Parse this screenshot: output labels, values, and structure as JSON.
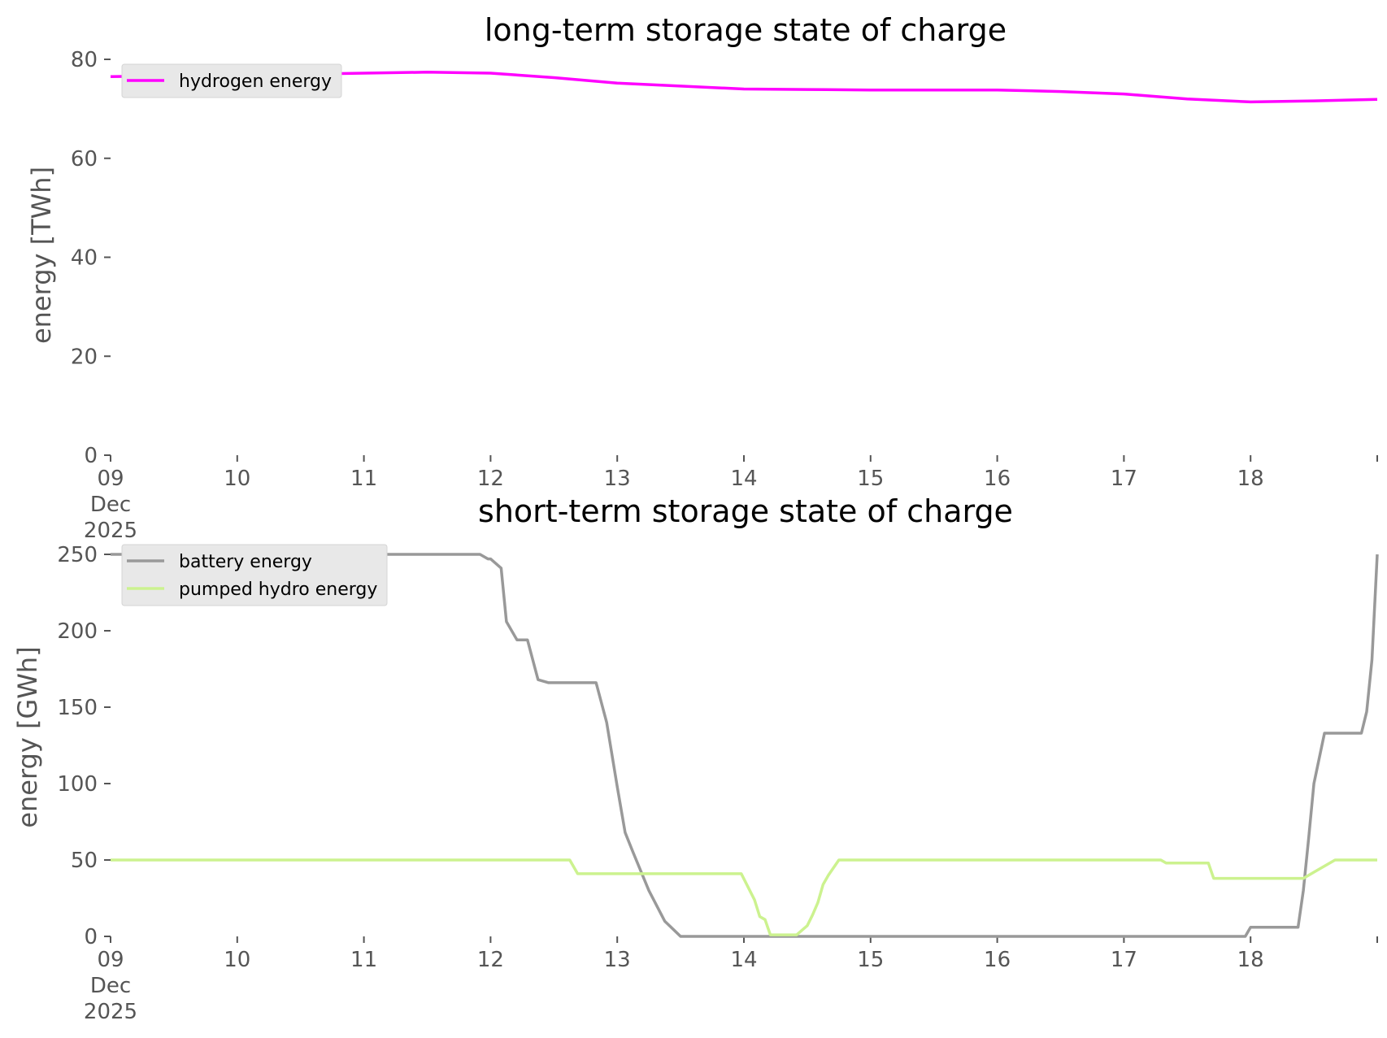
{
  "chart_data": [
    {
      "type": "line",
      "title": "long-term storage state of charge",
      "xlabel": "",
      "ylabel": "energy [TWh]",
      "ylim": [
        0,
        80
      ],
      "xlim": [
        "2025-12-09",
        "2025-12-19"
      ],
      "yticks": [
        "0",
        "20",
        "40",
        "60",
        "80"
      ],
      "xticks": [
        {
          "day": 9,
          "lines": [
            "09",
            "Dec",
            "2025"
          ]
        },
        {
          "day": 10,
          "lines": [
            "10"
          ]
        },
        {
          "day": 11,
          "lines": [
            "11"
          ]
        },
        {
          "day": 12,
          "lines": [
            "12"
          ]
        },
        {
          "day": 13,
          "lines": [
            "13"
          ]
        },
        {
          "day": 14,
          "lines": [
            "14"
          ]
        },
        {
          "day": 15,
          "lines": [
            "15"
          ]
        },
        {
          "day": 16,
          "lines": [
            "16"
          ]
        },
        {
          "day": 17,
          "lines": [
            "17"
          ]
        },
        {
          "day": 18,
          "lines": [
            "18"
          ]
        }
      ],
      "legend_position": "top-left",
      "grid": false,
      "series": [
        {
          "name": "hydrogen energy",
          "color": "#ff00ff",
          "x": [
            "2025-12-09 00:00",
            "2025-12-09 12:00",
            "2025-12-10 00:00",
            "2025-12-10 12:00",
            "2025-12-11 00:00",
            "2025-12-11 12:00",
            "2025-12-12 00:00",
            "2025-12-12 12:00",
            "2025-12-13 00:00",
            "2025-12-13 12:00",
            "2025-12-14 00:00",
            "2025-12-14 12:00",
            "2025-12-15 00:00",
            "2025-12-15 12:00",
            "2025-12-16 00:00",
            "2025-12-16 12:00",
            "2025-12-17 00:00",
            "2025-12-17 12:00",
            "2025-12-18 00:00",
            "2025-12-18 12:00",
            "2025-12-19 00:00"
          ],
          "y": [
            76.5,
            76.7,
            76.8,
            77.0,
            77.2,
            77.4,
            77.2,
            76.3,
            75.2,
            74.6,
            74.0,
            73.9,
            73.8,
            73.8,
            73.8,
            73.5,
            73.0,
            72.0,
            71.4,
            71.6,
            71.9
          ]
        }
      ]
    },
    {
      "type": "line",
      "title": "short-term storage state of charge",
      "xlabel": "",
      "ylabel": "energy [GWh]",
      "ylim": [
        0,
        250
      ],
      "xlim": [
        "2025-12-09",
        "2025-12-19"
      ],
      "yticks": [
        "0",
        "50",
        "100",
        "150",
        "200",
        "250"
      ],
      "xticks": [
        {
          "day": 9,
          "lines": [
            "09",
            "Dec",
            "2025"
          ]
        },
        {
          "day": 10,
          "lines": [
            "10"
          ]
        },
        {
          "day": 11,
          "lines": [
            "11"
          ]
        },
        {
          "day": 12,
          "lines": [
            "12"
          ]
        },
        {
          "day": 13,
          "lines": [
            "13"
          ]
        },
        {
          "day": 14,
          "lines": [
            "14"
          ]
        },
        {
          "day": 15,
          "lines": [
            "15"
          ]
        },
        {
          "day": 16,
          "lines": [
            "16"
          ]
        },
        {
          "day": 17,
          "lines": [
            "17"
          ]
        },
        {
          "day": 18,
          "lines": [
            "18"
          ]
        }
      ],
      "legend_position": "top-left",
      "grid": false,
      "series": [
        {
          "name": "battery energy",
          "color": "#999999",
          "x": [
            "2025-12-09 00:00",
            "2025-12-11 22:00",
            "2025-12-11 23:30",
            "2025-12-12 00:00",
            "2025-12-12 02:00",
            "2025-12-12 03:00",
            "2025-12-12 05:00",
            "2025-12-12 07:00",
            "2025-12-12 09:00",
            "2025-12-12 11:00",
            "2025-12-12 20:00",
            "2025-12-12 22:00",
            "2025-12-13 00:00",
            "2025-12-13 01:30",
            "2025-12-13 03:00",
            "2025-12-13 06:00",
            "2025-12-13 09:00",
            "2025-12-13 12:00",
            "2025-12-13 14:00",
            "2025-12-14 00:00",
            "2025-12-14 07:00",
            "2025-12-14 08:00",
            "2025-12-14 09:00",
            "2025-12-14 10:00",
            "2025-12-14 11:00",
            "2025-12-14 12:00",
            "2025-12-14 13:00",
            "2025-12-14 14:00",
            "2025-12-14 15:00",
            "2025-12-14 16:00",
            "2025-12-14 17:00",
            "2025-12-14 19:00",
            "2025-12-14 20:00",
            "2025-12-14 21:00",
            "2025-12-14 22:00",
            "2025-12-14 23:00",
            "2025-12-15 00:00",
            "2025-12-16 02:00",
            "2025-12-16 04:00",
            "2025-12-16 05:00",
            "2025-12-16 06:00",
            "2025-12-16 07:00",
            "2025-12-16 08:00",
            "2025-12-16 09:00",
            "2025-12-16 11:00",
            "2025-12-16 12:00",
            "2025-12-16 14:00",
            "2025-12-16 15:00",
            "2025-12-16 16:00",
            "2025-12-16 17:00",
            "2025-12-16 18:00",
            "2025-12-16 19:00",
            "2025-12-16 20:00",
            "2025-12-16 21:00",
            "2025-12-16 22:00",
            "2025-12-17 00:00",
            "2025-12-17 23:00",
            "2025-12-18 00:00",
            "2025-12-18 09:00",
            "2025-12-18 10:00",
            "2025-12-18 11:00",
            "2025-12-18 12:00",
            "2025-12-18 14:00",
            "2025-12-18 21:00",
            "2025-12-18 22:00",
            "2025-12-18 23:00",
            "2025-12-19 00:00"
          ],
          "y": [
            250,
            250,
            247,
            247,
            241,
            206,
            194,
            194,
            168,
            166,
            166,
            140,
            98,
            68,
            55,
            30,
            10,
            0,
            0,
            0,
            0,
            0,
            0,
            0,
            0,
            0,
            0,
            0,
            0,
            0,
            0,
            0,
            0,
            0,
            0,
            0,
            0,
            0,
            0,
            0,
            0,
            0,
            0,
            0,
            0,
            0,
            0,
            0,
            0,
            0,
            0,
            0,
            0,
            0,
            0,
            0,
            0,
            6,
            6,
            30,
            64,
            100,
            133,
            133,
            147,
            181,
            250
          ],
          "y_override_note": ""
        },
        {
          "name": "pumped hydro energy",
          "color": "#ccf28f",
          "x": [
            "2025-12-09 00:00",
            "2025-12-12 15:00",
            "2025-12-12 16:30",
            "2025-12-13 00:00",
            "2025-12-13 23:30",
            "2025-12-14 02:00",
            "2025-12-14 03:00",
            "2025-12-14 04:00",
            "2025-12-14 05:00",
            "2025-12-14 08:00",
            "2025-12-14 10:00",
            "2025-12-14 12:00",
            "2025-12-14 13:00",
            "2025-12-14 14:00",
            "2025-12-14 15:00",
            "2025-12-14 16:00",
            "2025-12-14 18:00",
            "2025-12-15 00:00",
            "2025-12-17 07:00",
            "2025-12-17 08:00",
            "2025-12-17 16:00",
            "2025-12-17 17:00",
            "2025-12-17 18:00",
            "2025-12-18 00:00",
            "2025-12-18 10:00",
            "2025-12-18 12:00",
            "2025-12-18 16:00",
            "2025-12-19 00:00"
          ],
          "y": [
            50,
            50,
            41,
            41,
            41,
            24,
            13,
            11,
            1,
            1,
            1,
            7,
            14,
            22,
            34,
            40,
            50,
            50,
            50,
            48,
            48,
            38,
            38,
            38,
            38,
            42,
            50,
            50
          ]
        }
      ]
    }
  ]
}
